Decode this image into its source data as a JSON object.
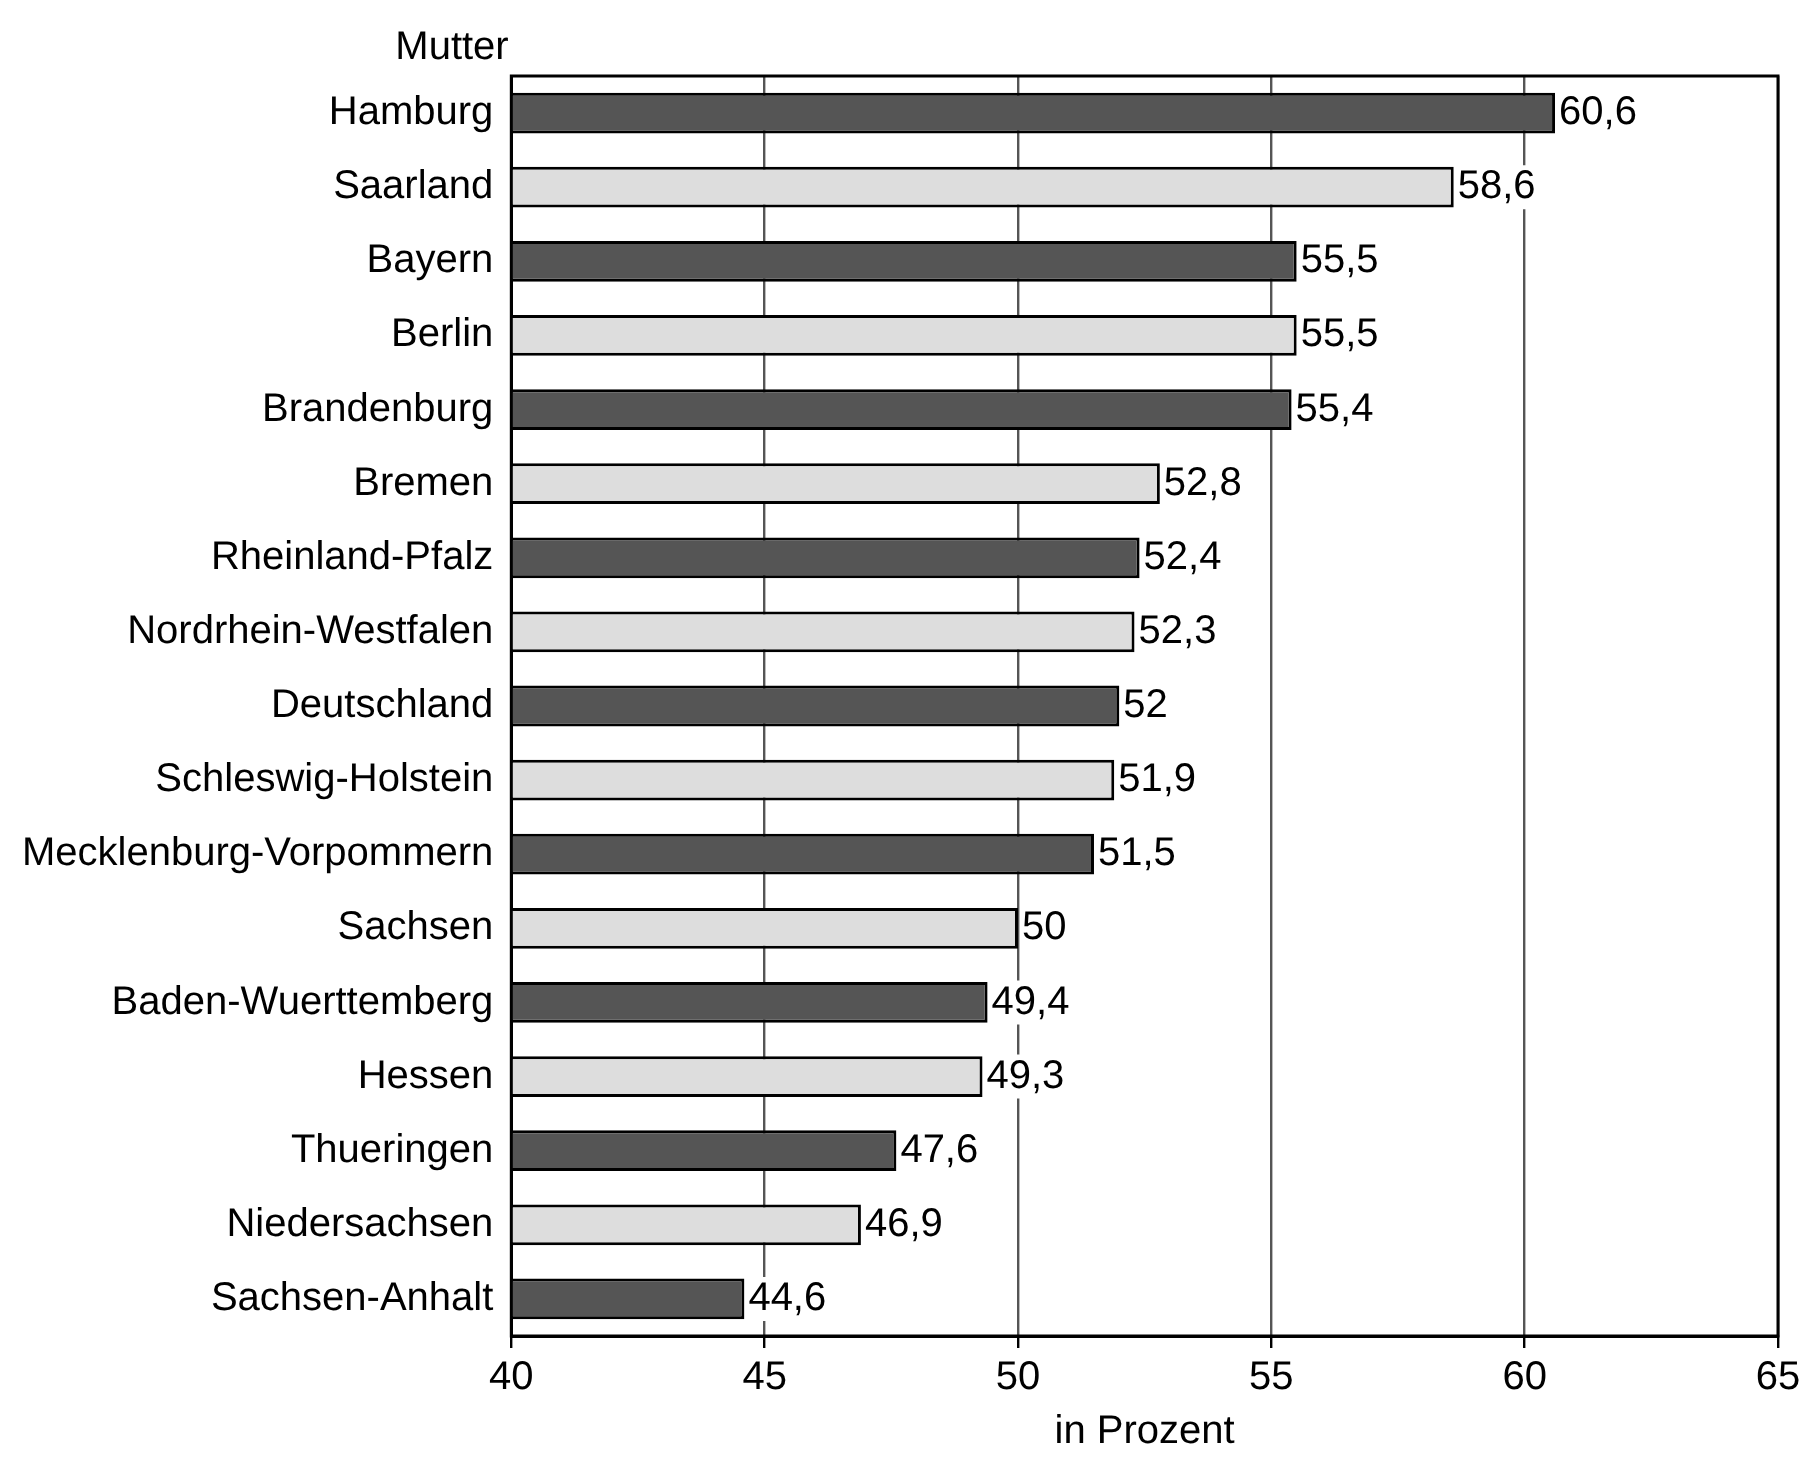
{
  "chart_data": {
    "type": "bar",
    "orientation": "horizontal",
    "title": "Mutter",
    "xlabel": "in Prozent",
    "categories": [
      "Hamburg",
      "Saarland",
      "Bayern",
      "Berlin",
      "Brandenburg",
      "Bremen",
      "Rheinland-Pfalz",
      "Nordrhein-Westfalen",
      "Deutschland",
      "Schleswig-Holstein",
      "Mecklenburg-Vorpommern",
      "Sachsen",
      "Baden-Wuerttemberg",
      "Hessen",
      "Thueringen",
      "Niedersachsen",
      "Sachsen-Anhalt"
    ],
    "values": [
      60.6,
      58.6,
      55.5,
      55.5,
      55.4,
      52.8,
      52.4,
      52.3,
      52,
      51.9,
      51.5,
      50,
      49.4,
      49.3,
      47.6,
      46.9,
      44.6
    ],
    "colors": [
      "#555555",
      "#dddddd",
      "#555555",
      "#dddddd",
      "#555555",
      "#dddddd",
      "#555555",
      "#dddddd",
      "#555555",
      "#dddddd",
      "#555555",
      "#dddddd",
      "#555555",
      "#dddddd",
      "#555555",
      "#dddddd",
      "#555555"
    ],
    "value_labels": [
      "60,6",
      "58,6",
      "55,5",
      "55,5",
      "55,4",
      "52,8",
      "52,4",
      "52,3",
      "52",
      "51,9",
      "51,5",
      "50",
      "49,4",
      "49,3",
      "47,6",
      "46,9",
      "44,6"
    ],
    "xlim": [
      40,
      65
    ],
    "xticks": [
      40,
      45,
      50,
      55,
      60,
      65
    ],
    "grid": "x",
    "legend": false
  }
}
